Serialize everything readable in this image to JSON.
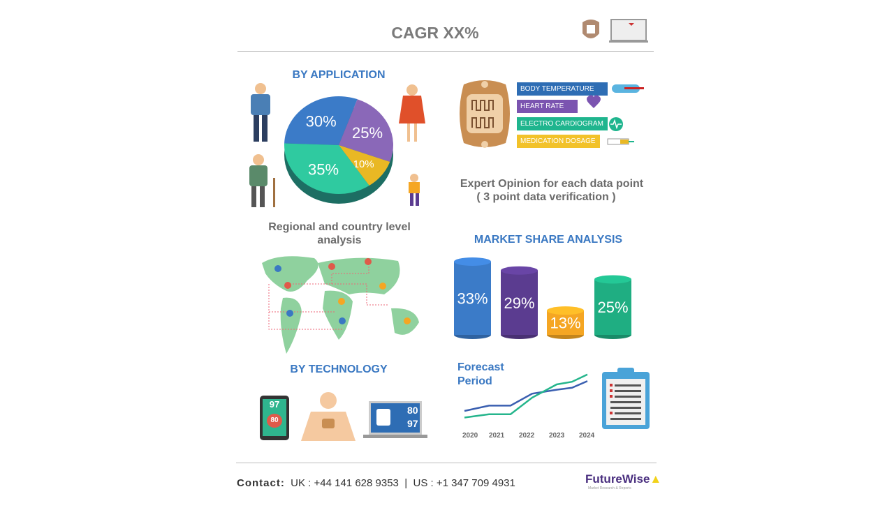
{
  "header": {
    "title": "CAGR XX%",
    "icons": [
      "heart-chip-icon",
      "monitor-vitals-icon"
    ]
  },
  "application": {
    "title": "BY APPLICATION",
    "pie": [
      {
        "value": 30,
        "label": "30%",
        "color": "#3b7bc8"
      },
      {
        "value": 25,
        "label": "25%",
        "color": "#8a68b8"
      },
      {
        "value": 10,
        "label": "10%",
        "color": "#e9b824"
      },
      {
        "value": 35,
        "label": "35%",
        "color": "#2fcaa0"
      }
    ]
  },
  "features": {
    "items": [
      {
        "label": "BODY TEMPERATURE",
        "color": "#2e6db4",
        "icon": "thermometer-icon"
      },
      {
        "label": "HEART RATE",
        "color": "#7b54b0",
        "icon": "heart-icon"
      },
      {
        "label": "ELECTRO CARDIOGRAM",
        "color": "#1fb58e",
        "icon": "ecg-icon"
      },
      {
        "label": "MEDICATION DOSAGE",
        "color": "#f2c22a",
        "icon": "syringe-icon"
      }
    ]
  },
  "expert": {
    "line1": "Expert Opinion for each data point",
    "line2": "( 3 point data verification )"
  },
  "regional": {
    "line1": "Regional and country level",
    "line2": "analysis"
  },
  "market_share": {
    "title": "MARKET SHARE ANALYSIS",
    "cylinders": [
      {
        "value": 33,
        "label": "33%",
        "color": "#3b7bc8"
      },
      {
        "value": 29,
        "label": "29%",
        "color": "#5b3c90"
      },
      {
        "value": 13,
        "label": "13%",
        "color": "#f5a623"
      },
      {
        "value": 25,
        "label": "25%",
        "color": "#1fae82"
      }
    ]
  },
  "technology": {
    "title": "BY TECHNOLOGY",
    "phone_values": [
      "97",
      "80"
    ],
    "laptop_values": [
      "80",
      "97"
    ]
  },
  "forecast": {
    "line1": "Forecast",
    "line2": "Period",
    "years": [
      "2020",
      "2021",
      "2022",
      "2023",
      "2024"
    ],
    "series": [
      {
        "color": "#3a5fb0",
        "points": [
          [
            2020,
            20
          ],
          [
            2020.8,
            28
          ],
          [
            2021.5,
            28
          ],
          [
            2022.2,
            46
          ],
          [
            2023,
            52
          ],
          [
            2023.5,
            55
          ],
          [
            2024,
            65
          ]
        ]
      },
      {
        "color": "#25b58c",
        "points": [
          [
            2020,
            10
          ],
          [
            2020.8,
            15
          ],
          [
            2021.5,
            15
          ],
          [
            2022.2,
            40
          ],
          [
            2023,
            60
          ],
          [
            2023.5,
            64
          ],
          [
            2024,
            75
          ]
        ]
      }
    ]
  },
  "footer": {
    "contact_label": "Contact:",
    "uk": "UK : +44 141 628 9353",
    "sep": "|",
    "us": "US : +1 347 709 4931",
    "logo": "FutureWise",
    "logo_tagline": "Market Research & Reports"
  }
}
